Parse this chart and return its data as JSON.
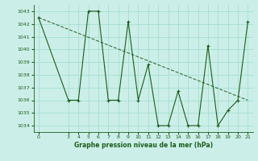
{
  "xlabel": "Graphe pression niveau de la mer (hPa)",
  "x_values": [
    0,
    3,
    4,
    5,
    6,
    7,
    8,
    9,
    10,
    11,
    12,
    13,
    14,
    15,
    16,
    17,
    18,
    19,
    20,
    21
  ],
  "y_values": [
    1042.5,
    1036.0,
    1036.0,
    1043.0,
    1043.0,
    1036.0,
    1036.0,
    1042.2,
    1036.0,
    1038.8,
    1034.0,
    1034.0,
    1036.7,
    1034.0,
    1034.0,
    1040.3,
    1034.0,
    1035.2,
    1036.0,
    1042.2
  ],
  "line_color": "#1a5c1a",
  "marker_color": "#1a5c1a",
  "bg_color": "#cceee8",
  "grid_color": "#99ddcc",
  "text_color": "#1a5c1a",
  "ylim": [
    1033.5,
    1043.5
  ],
  "xlim": [
    -0.5,
    21.5
  ],
  "yticks": [
    1034,
    1035,
    1036,
    1037,
    1038,
    1039,
    1040,
    1041,
    1042,
    1043
  ],
  "xticks": [
    0,
    3,
    4,
    5,
    6,
    7,
    8,
    9,
    10,
    11,
    12,
    13,
    14,
    15,
    16,
    17,
    18,
    19,
    20,
    21
  ],
  "trend_x": [
    0,
    21
  ],
  "trend_y": [
    1042.5,
    1036.0
  ]
}
